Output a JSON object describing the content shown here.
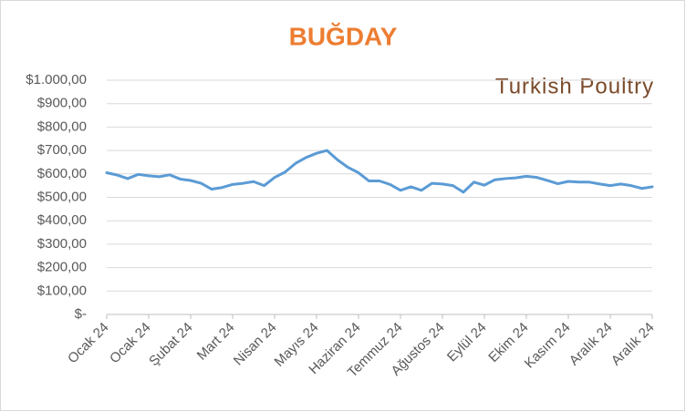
{
  "chart_data": {
    "type": "line",
    "title": "BUĞDAY",
    "categories": [
      "Ocak 24",
      null,
      null,
      null,
      "Ocak 24",
      null,
      null,
      null,
      "Şubat 24",
      null,
      null,
      null,
      "Mart 24",
      null,
      null,
      null,
      "Nisan 24",
      null,
      null,
      null,
      "Mayıs 24",
      null,
      null,
      null,
      "Haziran 24",
      null,
      null,
      null,
      "Temmuz 24",
      null,
      null,
      null,
      "Ağustos 24",
      null,
      null,
      null,
      "Eylül 24",
      null,
      null,
      null,
      "Ekim 24",
      null,
      null,
      null,
      "Kasım 24",
      null,
      null,
      null,
      "Aralık 24",
      null,
      null,
      null,
      "Aralık 24"
    ],
    "values": [
      605,
      595,
      580,
      598,
      592,
      588,
      596,
      578,
      572,
      560,
      535,
      542,
      555,
      560,
      567,
      550,
      585,
      608,
      645,
      670,
      688,
      700,
      660,
      628,
      605,
      570,
      570,
      555,
      530,
      545,
      530,
      560,
      557,
      550,
      522,
      565,
      552,
      575,
      580,
      583,
      590,
      585,
      572,
      558,
      568,
      565,
      565,
      557,
      550,
      557,
      550,
      538,
      545
    ],
    "color": "#5b9bd5",
    "ylim": [
      0,
      1000
    ],
    "yticks": [
      {
        "value": 0,
        "label": "$-"
      },
      {
        "value": 100,
        "label": "$100,00"
      },
      {
        "value": 200,
        "label": "$200,00"
      },
      {
        "value": 300,
        "label": "$300,00"
      },
      {
        "value": 400,
        "label": "$400,00"
      },
      {
        "value": 500,
        "label": "$500,00"
      },
      {
        "value": 600,
        "label": "$600,00"
      },
      {
        "value": 700,
        "label": "$700,00"
      },
      {
        "value": 800,
        "label": "$800,00"
      },
      {
        "value": 900,
        "label": "$900,00"
      },
      {
        "value": 1000,
        "label": "$1.000,00"
      }
    ],
    "grid": true
  },
  "logo": "Turkish Poultry"
}
